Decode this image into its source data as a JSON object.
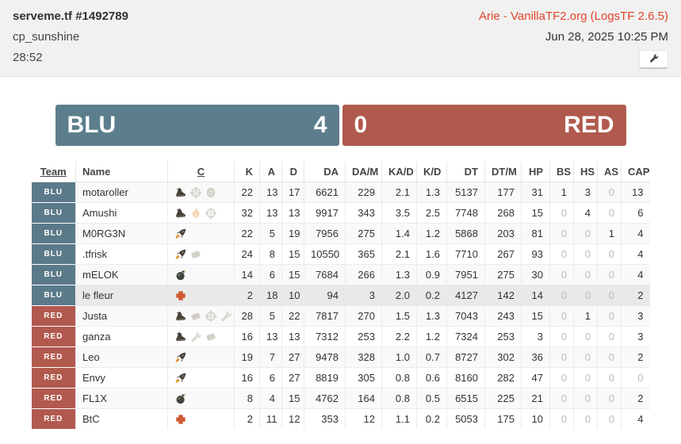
{
  "header": {
    "title": "serveme.tf #1492789",
    "map": "cp_sunshine",
    "duration": "28:52",
    "uploader": "Arie - VanillaTF2.org (LogsTF 2.6.5)",
    "uploader_color": "#e2452a",
    "date": "Jun 28, 2025 10:25 PM",
    "tools_icon": "wrench-icon"
  },
  "scoreboard": {
    "blu": {
      "name": "BLU",
      "score": "4",
      "color": "#5c7e8c"
    },
    "red": {
      "name": "RED",
      "score": "0",
      "color": "#b05a4d"
    }
  },
  "table": {
    "team_colors": {
      "BLU": "#5b7a89",
      "RED": "#b2594e"
    },
    "zero_color": "#bbbbbb",
    "columns": [
      {
        "key": "team",
        "label": "Team",
        "underline": true
      },
      {
        "key": "name",
        "label": "Name",
        "underline": false
      },
      {
        "key": "classes",
        "label": "C",
        "underline": true
      },
      {
        "key": "k",
        "label": "K"
      },
      {
        "key": "a",
        "label": "A"
      },
      {
        "key": "d",
        "label": "D"
      },
      {
        "key": "da",
        "label": "DA"
      },
      {
        "key": "dam",
        "label": "DA/M"
      },
      {
        "key": "kad",
        "label": "KA/D"
      },
      {
        "key": "kd",
        "label": "K/D"
      },
      {
        "key": "dt",
        "label": "DT"
      },
      {
        "key": "dtm",
        "label": "DT/M"
      },
      {
        "key": "hp",
        "label": "HP"
      },
      {
        "key": "bs",
        "label": "BS"
      },
      {
        "key": "hs",
        "label": "HS"
      },
      {
        "key": "as",
        "label": "AS"
      },
      {
        "key": "cap",
        "label": "CAP"
      }
    ],
    "stat_keys": [
      "k",
      "a",
      "d",
      "da",
      "dam",
      "kad",
      "kd",
      "dt",
      "dtm",
      "hp",
      "bs",
      "hs",
      "as",
      "cap"
    ],
    "class_icon_names": {
      "scout": "scout-class-icon",
      "soldier": "soldier-class-icon",
      "pyro": "pyro-class-icon",
      "demoman": "demoman-class-icon",
      "heavy": "heavy-class-icon",
      "engineer": "engineer-class-icon",
      "medic": "medic-class-icon",
      "sniper": "sniper-class-icon",
      "spy": "spy-class-icon"
    },
    "rows": [
      {
        "team": "BLU",
        "name": "motaroller",
        "classes": [
          "scout",
          "sniper",
          "spy"
        ],
        "highlighted": false,
        "stats": [
          "22",
          "13",
          "17",
          "6621",
          "229",
          "2.1",
          "1.3",
          "5137",
          "177",
          "31",
          "1",
          "3",
          "0",
          "13"
        ]
      },
      {
        "team": "BLU",
        "name": "Amushi",
        "classes": [
          "scout",
          "pyro",
          "sniper"
        ],
        "highlighted": false,
        "stats": [
          "32",
          "13",
          "13",
          "9917",
          "343",
          "3.5",
          "2.5",
          "7748",
          "268",
          "15",
          "0",
          "4",
          "0",
          "6"
        ]
      },
      {
        "team": "BLU",
        "name": "M0RG3N",
        "classes": [
          "soldier"
        ],
        "highlighted": false,
        "stats": [
          "22",
          "5",
          "19",
          "7956",
          "275",
          "1.4",
          "1.2",
          "5868",
          "203",
          "81",
          "0",
          "0",
          "1",
          "4"
        ]
      },
      {
        "team": "BLU",
        "name": ".tfrisk",
        "classes": [
          "soldier",
          "heavy"
        ],
        "highlighted": false,
        "stats": [
          "24",
          "8",
          "15",
          "10550",
          "365",
          "2.1",
          "1.6",
          "7710",
          "267",
          "93",
          "0",
          "0",
          "0",
          "4"
        ]
      },
      {
        "team": "BLU",
        "name": "mELOK",
        "classes": [
          "demoman"
        ],
        "highlighted": false,
        "stats": [
          "14",
          "6",
          "15",
          "7684",
          "266",
          "1.3",
          "0.9",
          "7951",
          "275",
          "30",
          "0",
          "0",
          "0",
          "4"
        ]
      },
      {
        "team": "BLU",
        "name": "le fleur",
        "classes": [
          "medic"
        ],
        "highlighted": true,
        "stats": [
          "2",
          "18",
          "10",
          "94",
          "3",
          "2.0",
          "0.2",
          "4127",
          "142",
          "14",
          "0",
          "0",
          "0",
          "2"
        ]
      },
      {
        "team": "RED",
        "name": "Justa",
        "classes": [
          "scout",
          "heavy",
          "sniper",
          "engineer"
        ],
        "highlighted": false,
        "stats": [
          "28",
          "5",
          "22",
          "7817",
          "270",
          "1.5",
          "1.3",
          "7043",
          "243",
          "15",
          "0",
          "1",
          "0",
          "3"
        ]
      },
      {
        "team": "RED",
        "name": "ganza",
        "classes": [
          "scout",
          "engineer",
          "heavy"
        ],
        "highlighted": false,
        "stats": [
          "16",
          "13",
          "13",
          "7312",
          "253",
          "2.2",
          "1.2",
          "7324",
          "253",
          "3",
          "0",
          "0",
          "0",
          "3"
        ]
      },
      {
        "team": "RED",
        "name": "Leo",
        "classes": [
          "soldier"
        ],
        "highlighted": false,
        "stats": [
          "19",
          "7",
          "27",
          "9478",
          "328",
          "1.0",
          "0.7",
          "8727",
          "302",
          "36",
          "0",
          "0",
          "0",
          "2"
        ]
      },
      {
        "team": "RED",
        "name": "Envy",
        "classes": [
          "soldier"
        ],
        "highlighted": false,
        "stats": [
          "16",
          "6",
          "27",
          "8819",
          "305",
          "0.8",
          "0.6",
          "8160",
          "282",
          "47",
          "0",
          "0",
          "0",
          "0"
        ]
      },
      {
        "team": "RED",
        "name": "FL1X",
        "classes": [
          "demoman"
        ],
        "highlighted": false,
        "stats": [
          "8",
          "4",
          "15",
          "4762",
          "164",
          "0.8",
          "0.5",
          "6515",
          "225",
          "21",
          "0",
          "0",
          "0",
          "2"
        ]
      },
      {
        "team": "RED",
        "name": "BtC",
        "classes": [
          "medic"
        ],
        "highlighted": false,
        "stats": [
          "2",
          "11",
          "12",
          "353",
          "12",
          "1.1",
          "0.2",
          "5053",
          "175",
          "10",
          "0",
          "0",
          "0",
          "4"
        ]
      }
    ]
  }
}
